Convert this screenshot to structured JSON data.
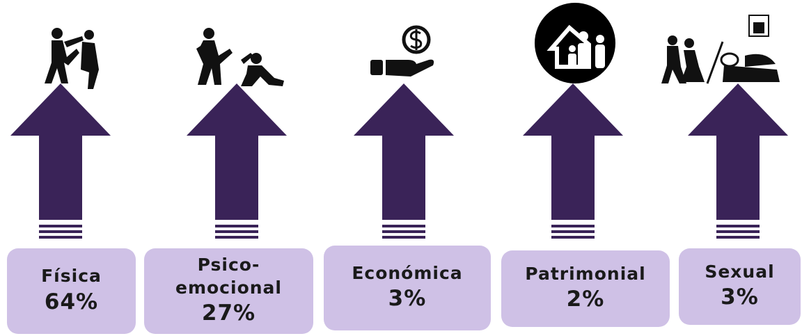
{
  "items": [
    {
      "label": "Física",
      "value": "64%"
    },
    {
      "label": "Psico-emocional",
      "value": "27%"
    },
    {
      "label": "Económica",
      "value": "3%"
    },
    {
      "label": "Patrimonial",
      "value": "2%"
    },
    {
      "label": "Sexual",
      "value": "3%"
    }
  ]
}
